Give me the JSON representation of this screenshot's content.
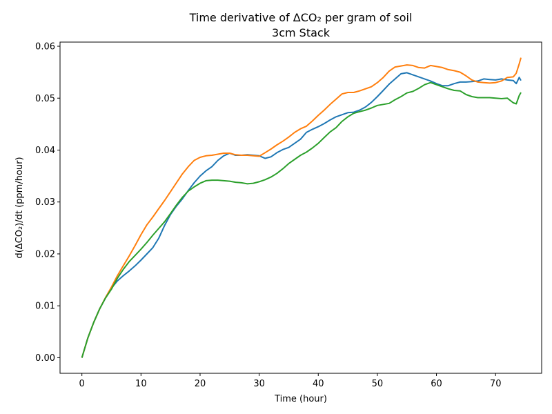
{
  "chart_data": {
    "type": "line",
    "title": "Time derivative of ΔCO₂ per gram of soil",
    "subtitle": "3cm Stack",
    "xlabel": "Time (hour)",
    "ylabel": "d(ΔCO₂)/dt (ppm/hour)",
    "xlim": [
      -3.7,
      77.8
    ],
    "ylim": [
      -0.003,
      0.0608
    ],
    "xticks": [
      0,
      10,
      20,
      30,
      40,
      50,
      60,
      70
    ],
    "yticks": [
      0.0,
      0.01,
      0.02,
      0.03,
      0.04,
      0.05,
      0.06
    ],
    "ytick_labels": [
      "0.00",
      "0.01",
      "0.02",
      "0.03",
      "0.04",
      "0.05",
      "0.06"
    ],
    "grid": false,
    "legend": "none",
    "series": [
      {
        "color": "#1f77b4",
        "points": [
          [
            0,
            0.0
          ],
          [
            1,
            0.0038
          ],
          [
            2,
            0.0068
          ],
          [
            3,
            0.0094
          ],
          [
            4,
            0.0115
          ],
          [
            5,
            0.0134
          ],
          [
            6,
            0.0148
          ],
          [
            7,
            0.0158
          ],
          [
            8,
            0.0167
          ],
          [
            9,
            0.0177
          ],
          [
            10,
            0.0188
          ],
          [
            11,
            0.02
          ],
          [
            12,
            0.0212
          ],
          [
            13,
            0.023
          ],
          [
            14,
            0.0255
          ],
          [
            15,
            0.0276
          ],
          [
            16,
            0.0292
          ],
          [
            17,
            0.0306
          ],
          [
            18,
            0.0322
          ],
          [
            19,
            0.0337
          ],
          [
            20,
            0.035
          ],
          [
            21,
            0.036
          ],
          [
            22,
            0.0368
          ],
          [
            23,
            0.038
          ],
          [
            24,
            0.0389
          ],
          [
            25,
            0.0394
          ],
          [
            26,
            0.039
          ],
          [
            27,
            0.039
          ],
          [
            28,
            0.0391
          ],
          [
            29,
            0.039
          ],
          [
            30,
            0.0389
          ],
          [
            31,
            0.0384
          ],
          [
            32,
            0.0387
          ],
          [
            33,
            0.0395
          ],
          [
            34,
            0.0401
          ],
          [
            35,
            0.0405
          ],
          [
            36,
            0.0413
          ],
          [
            37,
            0.0421
          ],
          [
            38,
            0.0434
          ],
          [
            39,
            0.044
          ],
          [
            40,
            0.0445
          ],
          [
            41,
            0.0451
          ],
          [
            42,
            0.0458
          ],
          [
            43,
            0.0464
          ],
          [
            44,
            0.0468
          ],
          [
            45,
            0.0472
          ],
          [
            46,
            0.0473
          ],
          [
            47,
            0.0477
          ],
          [
            48,
            0.0483
          ],
          [
            49,
            0.0492
          ],
          [
            50,
            0.0503
          ],
          [
            51,
            0.0515
          ],
          [
            52,
            0.0527
          ],
          [
            53,
            0.0537
          ],
          [
            54,
            0.0547
          ],
          [
            55,
            0.0549
          ],
          [
            56,
            0.0545
          ],
          [
            57,
            0.0541
          ],
          [
            58,
            0.0537
          ],
          [
            59,
            0.0533
          ],
          [
            60,
            0.0528
          ],
          [
            61,
            0.0524
          ],
          [
            62,
            0.0524
          ],
          [
            63,
            0.0528
          ],
          [
            64,
            0.0531
          ],
          [
            65,
            0.0531
          ],
          [
            66,
            0.0532
          ],
          [
            67,
            0.0533
          ],
          [
            68,
            0.0537
          ],
          [
            69,
            0.0536
          ],
          [
            70,
            0.0535
          ],
          [
            71,
            0.0537
          ],
          [
            72,
            0.0535
          ],
          [
            73,
            0.0534
          ],
          [
            73.5,
            0.0528
          ],
          [
            74,
            0.054
          ],
          [
            74.3,
            0.0534
          ]
        ]
      },
      {
        "color": "#ff7f0e",
        "points": [
          [
            0,
            0.0
          ],
          [
            1,
            0.0038
          ],
          [
            2,
            0.0068
          ],
          [
            3,
            0.0094
          ],
          [
            4,
            0.0116
          ],
          [
            5,
            0.0136
          ],
          [
            6,
            0.0158
          ],
          [
            7,
            0.0177
          ],
          [
            8,
            0.0196
          ],
          [
            9,
            0.0216
          ],
          [
            10,
            0.0237
          ],
          [
            11,
            0.0256
          ],
          [
            12,
            0.0271
          ],
          [
            13,
            0.0287
          ],
          [
            14,
            0.0303
          ],
          [
            15,
            0.032
          ],
          [
            16,
            0.0337
          ],
          [
            17,
            0.0354
          ],
          [
            18,
            0.0368
          ],
          [
            19,
            0.038
          ],
          [
            20,
            0.0386
          ],
          [
            21,
            0.0389
          ],
          [
            22,
            0.039
          ],
          [
            23,
            0.0392
          ],
          [
            24,
            0.0394
          ],
          [
            25,
            0.0394
          ],
          [
            26,
            0.0391
          ],
          [
            27,
            0.039
          ],
          [
            28,
            0.039
          ],
          [
            29,
            0.0389
          ],
          [
            30,
            0.0388
          ],
          [
            31,
            0.0395
          ],
          [
            32,
            0.0402
          ],
          [
            33,
            0.041
          ],
          [
            34,
            0.0417
          ],
          [
            35,
            0.0425
          ],
          [
            36,
            0.0434
          ],
          [
            37,
            0.0441
          ],
          [
            38,
            0.0446
          ],
          [
            39,
            0.0456
          ],
          [
            40,
            0.0467
          ],
          [
            41,
            0.0477
          ],
          [
            42,
            0.0488
          ],
          [
            43,
            0.0498
          ],
          [
            44,
            0.0508
          ],
          [
            45,
            0.0511
          ],
          [
            46,
            0.0511
          ],
          [
            47,
            0.0514
          ],
          [
            48,
            0.0518
          ],
          [
            49,
            0.0522
          ],
          [
            50,
            0.053
          ],
          [
            51,
            0.054
          ],
          [
            52,
            0.0552
          ],
          [
            53,
            0.056
          ],
          [
            54,
            0.0562
          ],
          [
            55,
            0.0564
          ],
          [
            56,
            0.0563
          ],
          [
            57,
            0.0559
          ],
          [
            58,
            0.0558
          ],
          [
            59,
            0.0563
          ],
          [
            60,
            0.0561
          ],
          [
            61,
            0.0559
          ],
          [
            62,
            0.0555
          ],
          [
            63,
            0.0553
          ],
          [
            64,
            0.055
          ],
          [
            65,
            0.0543
          ],
          [
            66,
            0.0535
          ],
          [
            67,
            0.0531
          ],
          [
            68,
            0.053
          ],
          [
            69,
            0.0529
          ],
          [
            70,
            0.053
          ],
          [
            71,
            0.0533
          ],
          [
            72,
            0.054
          ],
          [
            73,
            0.0541
          ],
          [
            73.5,
            0.0548
          ],
          [
            74,
            0.0566
          ],
          [
            74.3,
            0.0578
          ]
        ]
      },
      {
        "color": "#2ca02c",
        "points": [
          [
            0,
            0.0
          ],
          [
            1,
            0.0038
          ],
          [
            2,
            0.0068
          ],
          [
            3,
            0.0094
          ],
          [
            4,
            0.0115
          ],
          [
            5,
            0.0132
          ],
          [
            6,
            0.0153
          ],
          [
            7,
            0.017
          ],
          [
            8,
            0.0185
          ],
          [
            9,
            0.0197
          ],
          [
            10,
            0.0209
          ],
          [
            11,
            0.0222
          ],
          [
            12,
            0.0236
          ],
          [
            13,
            0.0249
          ],
          [
            14,
            0.0262
          ],
          [
            15,
            0.0278
          ],
          [
            16,
            0.0294
          ],
          [
            17,
            0.0309
          ],
          [
            18,
            0.0321
          ],
          [
            19,
            0.0329
          ],
          [
            20,
            0.0336
          ],
          [
            21,
            0.0341
          ],
          [
            22,
            0.0342
          ],
          [
            23,
            0.0342
          ],
          [
            24,
            0.0341
          ],
          [
            25,
            0.034
          ],
          [
            26,
            0.0338
          ],
          [
            27,
            0.0337
          ],
          [
            28,
            0.0335
          ],
          [
            29,
            0.0336
          ],
          [
            30,
            0.0339
          ],
          [
            31,
            0.0343
          ],
          [
            32,
            0.0348
          ],
          [
            33,
            0.0355
          ],
          [
            34,
            0.0364
          ],
          [
            35,
            0.0374
          ],
          [
            36,
            0.0382
          ],
          [
            37,
            0.039
          ],
          [
            38,
            0.0396
          ],
          [
            39,
            0.0404
          ],
          [
            40,
            0.0413
          ],
          [
            41,
            0.0424
          ],
          [
            42,
            0.0435
          ],
          [
            43,
            0.0443
          ],
          [
            44,
            0.0455
          ],
          [
            45,
            0.0464
          ],
          [
            46,
            0.0471
          ],
          [
            47,
            0.0474
          ],
          [
            48,
            0.0477
          ],
          [
            49,
            0.0481
          ],
          [
            50,
            0.0486
          ],
          [
            51,
            0.0488
          ],
          [
            52,
            0.049
          ],
          [
            53,
            0.0497
          ],
          [
            54,
            0.0503
          ],
          [
            55,
            0.051
          ],
          [
            56,
            0.0513
          ],
          [
            57,
            0.0519
          ],
          [
            58,
            0.0526
          ],
          [
            59,
            0.053
          ],
          [
            60,
            0.0526
          ],
          [
            61,
            0.0522
          ],
          [
            62,
            0.0518
          ],
          [
            63,
            0.0515
          ],
          [
            64,
            0.0514
          ],
          [
            65,
            0.0507
          ],
          [
            66,
            0.0503
          ],
          [
            67,
            0.0501
          ],
          [
            68,
            0.0501
          ],
          [
            69,
            0.0501
          ],
          [
            70,
            0.05
          ],
          [
            71,
            0.0499
          ],
          [
            72,
            0.05
          ],
          [
            73,
            0.0491
          ],
          [
            73.5,
            0.0489
          ],
          [
            74,
            0.0505
          ],
          [
            74.3,
            0.0511
          ]
        ]
      }
    ]
  }
}
